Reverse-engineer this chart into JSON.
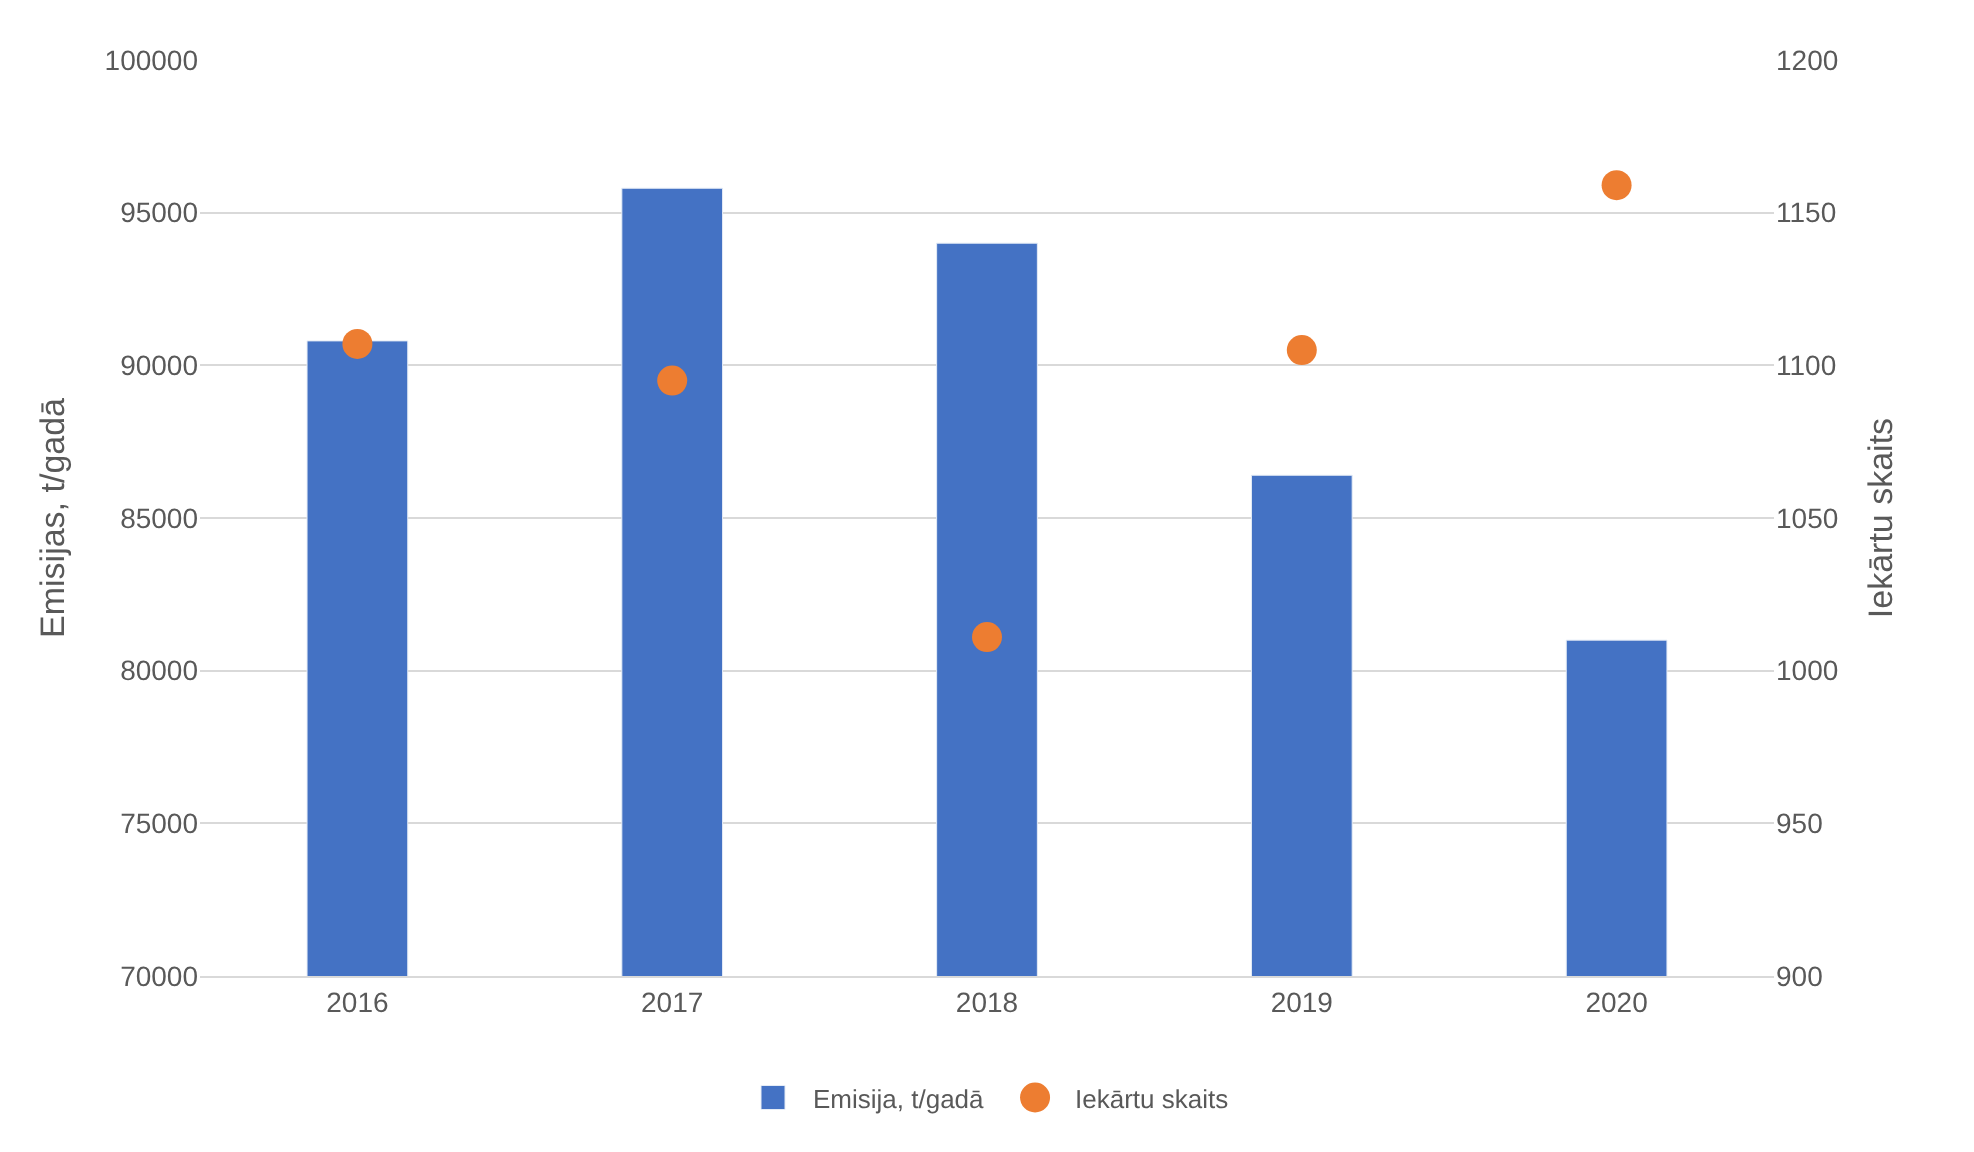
{
  "chart_data": {
    "type": "bar",
    "categories": [
      "2016",
      "2017",
      "2018",
      "2019",
      "2020"
    ],
    "series": [
      {
        "name": "Emisija, t/gadā",
        "color": "#4472c4",
        "values": [
          90800,
          95800,
          94000,
          86400,
          81000
        ]
      },
      {
        "name": "Iekārtu skaits",
        "color": "#ed7d31",
        "type": "scatter",
        "axis": "y2",
        "marker": "circle",
        "values": [
          1107,
          1095,
          1011,
          1105,
          1159
        ]
      }
    ],
    "ylabel": "Emisijas, t/gadā",
    "y2label": "Iekārtu skaits",
    "ylim": [
      70000,
      100000
    ],
    "yticks": [
      70000,
      75000,
      80000,
      85000,
      90000,
      95000,
      100000
    ],
    "y2lim": [
      900,
      1200
    ],
    "y2ticks": [
      900,
      950,
      1000,
      1050,
      1100,
      1150,
      1200
    ],
    "grid": "y",
    "legend": "bottom"
  }
}
